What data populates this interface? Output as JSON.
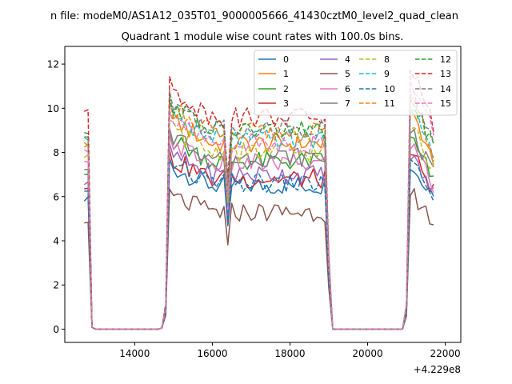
{
  "page": {
    "suptitle": "n file: modeM0/AS1A12_035T01_9000005666_41430cztM0_level2_quad_clean",
    "background": "#ffffff"
  },
  "chart_data": {
    "type": "line",
    "title": "Quadrant 1 module wise count rates with 100.0s bins.",
    "xlabel": "",
    "ylabel": "",
    "x_offset_label": "+4.229e8",
    "xlim": [
      12200,
      22400
    ],
    "ylim": [
      -0.6,
      12.8
    ],
    "x_ticks": [
      14000,
      16000,
      18000,
      20000,
      22000
    ],
    "x_tick_labels": [
      "14000",
      "16000",
      "18000",
      "20000",
      "22000"
    ],
    "y_ticks": [
      0,
      2,
      4,
      6,
      8,
      10,
      12
    ],
    "y_tick_labels": [
      "0",
      "2",
      "4",
      "6",
      "8",
      "10",
      "12"
    ],
    "grid": false,
    "legend": {
      "placement": "top-right",
      "columns": 4
    },
    "time_bins": {
      "start": 12700,
      "step": 100,
      "segments": [
        {
          "from": 12700,
          "to": 12800,
          "state": "on"
        },
        {
          "from": 12900,
          "to": 14600,
          "state": "off"
        },
        {
          "from": 14700,
          "to": 14800,
          "state": "ramp"
        },
        {
          "from": 14900,
          "to": 18900,
          "state": "on"
        },
        {
          "from": 19000,
          "to": 19100,
          "state": "ramp-down"
        },
        {
          "from": 19100,
          "to": 20900,
          "state": "off"
        },
        {
          "from": 21000,
          "to": 21000,
          "state": "ramp"
        },
        {
          "from": 21100,
          "to": 21700,
          "state": "on"
        }
      ],
      "dip_at": 16400
    },
    "series": [
      {
        "name": "0",
        "color": "#1f77b4",
        "dash": "solid",
        "start_value": 5.9,
        "level": 6.5,
        "late_level": 7.2
      },
      {
        "name": "1",
        "color": "#ff7f0e",
        "dash": "solid",
        "start_value": 8.3,
        "level": 8.4,
        "late_level": 9.6
      },
      {
        "name": "2",
        "color": "#2ca02c",
        "dash": "solid",
        "start_value": 7.1,
        "level": 7.6,
        "late_level": 8.4
      },
      {
        "name": "3",
        "color": "#d62728",
        "dash": "solid",
        "start_value": 6.4,
        "level": 6.8,
        "late_level": 7.8
      },
      {
        "name": "4",
        "color": "#9467bd",
        "dash": "solid",
        "start_value": 6.6,
        "level": 7.0,
        "late_level": 7.6
      },
      {
        "name": "5",
        "color": "#8c564b",
        "dash": "solid",
        "start_value": 4.9,
        "level": 5.3,
        "late_level": 6.0
      },
      {
        "name": "6",
        "color": "#e377c2",
        "dash": "solid",
        "start_value": 7.5,
        "level": 7.5,
        "late_level": 8.1
      },
      {
        "name": "7",
        "color": "#7f7f7f",
        "dash": "solid",
        "start_value": 7.3,
        "level": 7.8,
        "late_level": 8.7
      },
      {
        "name": "8",
        "color": "#bcbd22",
        "dash": "dashed",
        "start_value": 7.8,
        "level": 8.0,
        "late_level": 9.0
      },
      {
        "name": "9",
        "color": "#17becf",
        "dash": "dashed",
        "start_value": 8.6,
        "level": 8.6,
        "late_level": 9.8
      },
      {
        "name": "10",
        "color": "#1f77b4",
        "dash": "dashed",
        "start_value": 6.2,
        "level": 6.6,
        "late_level": 7.4
      },
      {
        "name": "11",
        "color": "#ff7f0e",
        "dash": "dashed",
        "start_value": 8.4,
        "level": 8.9,
        "late_level": 10.1
      },
      {
        "name": "12",
        "color": "#2ca02c",
        "dash": "dashed",
        "start_value": 8.9,
        "level": 9.0,
        "late_level": 10.3
      },
      {
        "name": "13",
        "color": "#d62728",
        "dash": "dashed",
        "start_value": 9.9,
        "level": 9.6,
        "late_level": 11.6
      },
      {
        "name": "14",
        "color": "#7f7f7f",
        "dash": "dashed",
        "start_value": 8.7,
        "level": 9.1,
        "late_level": 10.4
      },
      {
        "name": "15",
        "color": "#e377c2",
        "dash": "dashed",
        "start_value": 8.1,
        "level": 8.4,
        "late_level": 11.0
      }
    ]
  }
}
